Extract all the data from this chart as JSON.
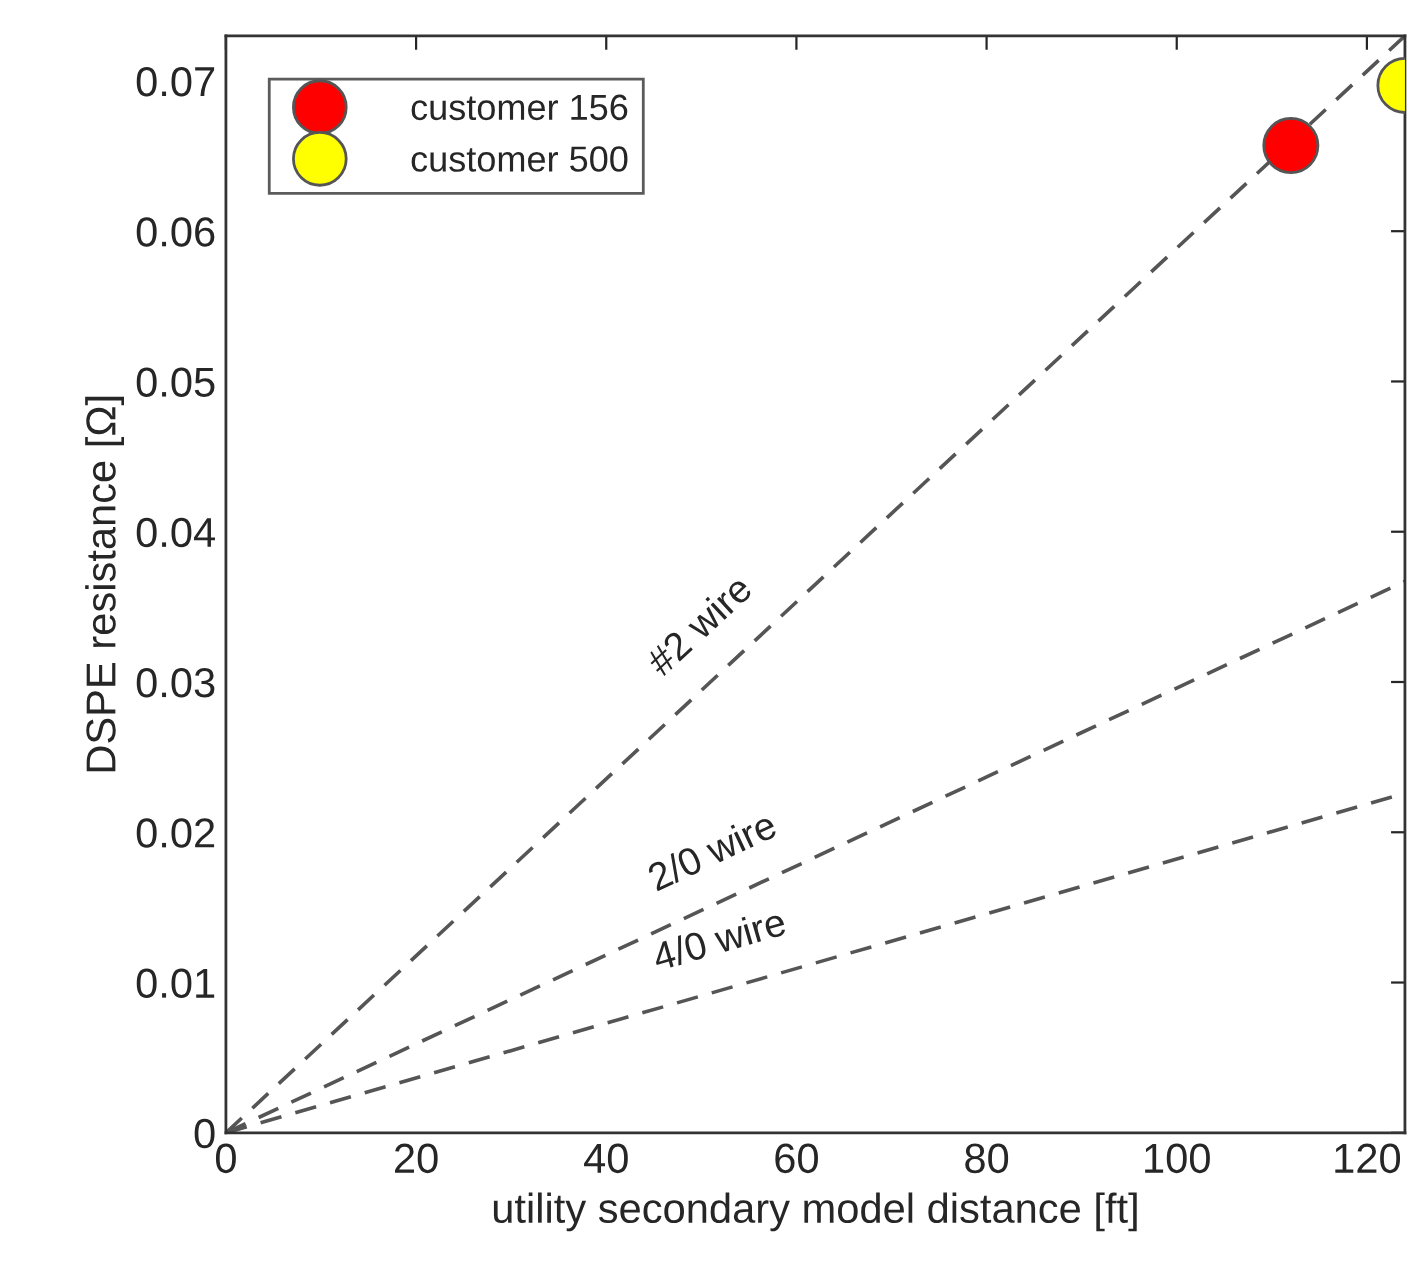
{
  "chart_data": {
    "type": "scatter",
    "xlabel": "utility secondary model distance [ft]",
    "ylabel": "DSPE resistance [Ω]",
    "xlim": [
      0,
      124
    ],
    "ylim": [
      0,
      0.073
    ],
    "xticks": [
      0,
      20,
      40,
      60,
      80,
      100,
      120
    ],
    "yticks": [
      0,
      0.01,
      0.02,
      0.03,
      0.04,
      0.05,
      0.06,
      0.07
    ],
    "series": [
      {
        "type": "line",
        "x": [
          0,
          124
        ],
        "values": [
          0,
          0.073
        ],
        "color": "#555555",
        "line_style": "dashed",
        "marker": "none"
      },
      {
        "type": "line",
        "x": [
          0,
          124
        ],
        "values": [
          0,
          0.0367
        ],
        "color": "#555555",
        "line_style": "dashed",
        "marker": "none"
      },
      {
        "type": "line",
        "x": [
          0,
          124
        ],
        "values": [
          0,
          0.0226
        ],
        "color": "#555555",
        "line_style": "dashed",
        "marker": "none"
      },
      {
        "name": "customer 156",
        "x": [
          112
        ],
        "values": [
          0.0657
        ],
        "color": "#ff0000",
        "marker": "circle"
      },
      {
        "name": "customer 500",
        "x": [
          124
        ],
        "values": [
          0.0697
        ],
        "color": "#ffff00",
        "marker": "circle"
      }
    ],
    "annotations": [
      "#2 wire",
      "2/0 wire",
      "4/0 wire"
    ],
    "legend": "top left",
    "grid": false
  }
}
